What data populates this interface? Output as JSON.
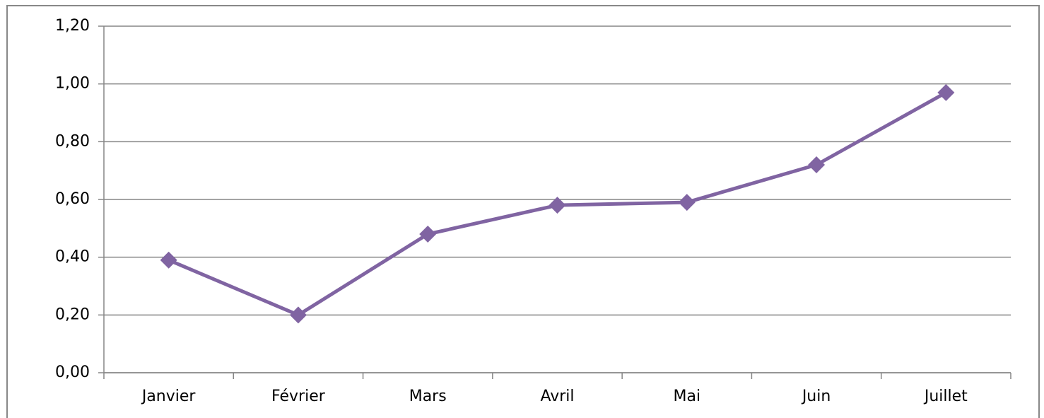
{
  "chart_data": {
    "type": "line",
    "categories": [
      "Janvier",
      "Février",
      "Mars",
      "Avril",
      "Mai",
      "Juin",
      "Juillet"
    ],
    "series": [
      {
        "color": "#8064a2",
        "values": [
          0.39,
          0.2,
          0.48,
          0.58,
          0.59,
          0.72,
          0.97
        ]
      }
    ],
    "ylim": [
      0,
      1.2
    ],
    "yticks": [
      {
        "value": 0,
        "label": "0,00"
      },
      {
        "value": 0.2,
        "label": "0,20"
      },
      {
        "value": 0.4,
        "label": "0,40"
      },
      {
        "value": 0.6,
        "label": "0,60"
      },
      {
        "value": 0.8,
        "label": "0,80"
      },
      {
        "value": 1.0,
        "label": "1,00"
      },
      {
        "value": 1.2,
        "label": "1,20"
      }
    ],
    "grid": true
  }
}
